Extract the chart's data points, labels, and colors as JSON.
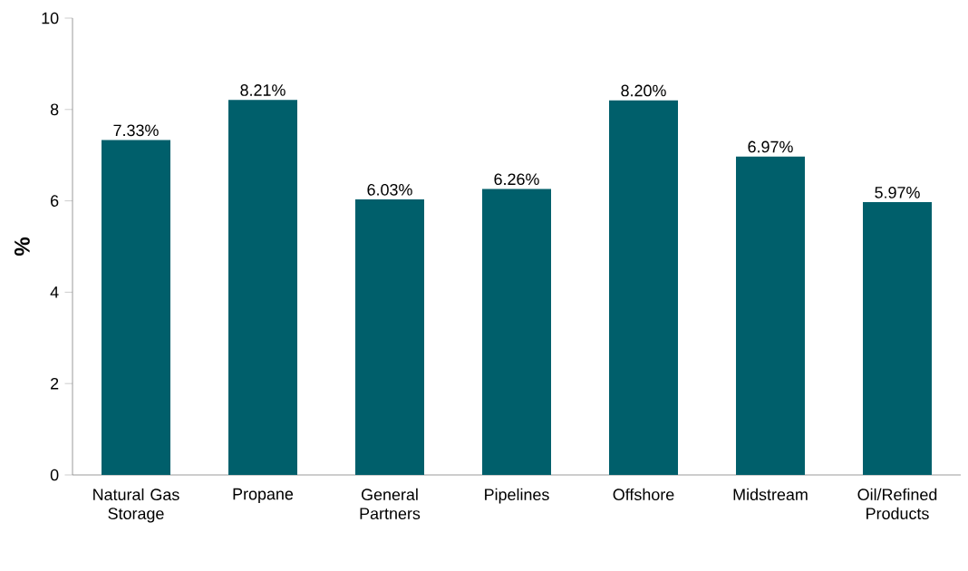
{
  "chart_data": {
    "type": "bar",
    "ylabel": "%",
    "categories": [
      "Natural Gas Storage",
      "Propane",
      "General Partners",
      "Pipelines",
      "Offshore",
      "Midstream",
      "Oil/Refined Products"
    ],
    "values": [
      7.33,
      8.21,
      6.03,
      6.26,
      8.2,
      6.97,
      5.97
    ],
    "value_labels": [
      "7.33%",
      "8.21%",
      "6.03%",
      "6.26%",
      "8.20%",
      "6.97%",
      "5.97%"
    ],
    "color": "#005f6b",
    "ylim": [
      0,
      10
    ],
    "yticks": [
      0,
      2,
      4,
      6,
      8,
      10
    ],
    "grid": false
  }
}
